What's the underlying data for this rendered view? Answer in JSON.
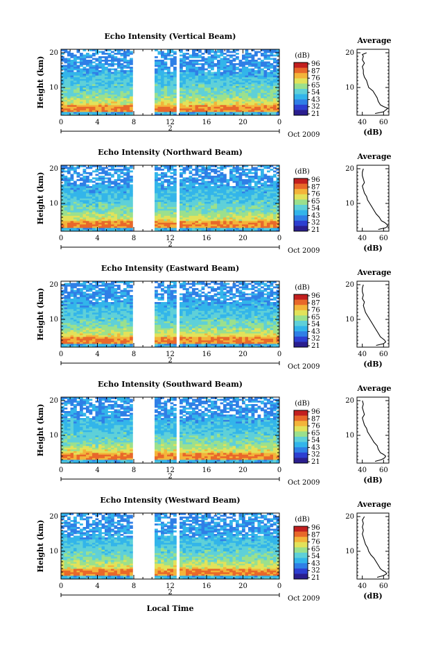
{
  "x_axis_common_label": "Local Time",
  "colorbar_unit": "(dB)",
  "colorbar_ticks": [
    "96",
    "87",
    "76",
    "65",
    "54",
    "43",
    "32",
    "21"
  ],
  "colormap": [
    "#2b1f8f",
    "#2d3fd1",
    "#2f7fe6",
    "#33b5ea",
    "#5fd0d8",
    "#9be08d",
    "#e2e25a",
    "#f3b43a",
    "#e8682a",
    "#c21f1f"
  ],
  "chart_data": [
    {
      "type": "heatmap",
      "title": "Echo Intensity (Vertical Beam)",
      "ylabel": "Height (km)",
      "x_ticks": [
        "0",
        "4",
        "8",
        "12",
        "16",
        "20",
        "0"
      ],
      "date_label": "2",
      "month_label": "Oct 2009",
      "ylim": [
        2,
        21
      ],
      "y_ticks": [
        "20",
        "10"
      ],
      "xlim": [
        0,
        24
      ],
      "data_gaps_hours": [
        [
          8,
          10.3
        ],
        [
          12.6,
          12.9
        ]
      ],
      "profile": {
        "title": "Average",
        "xlabel": "(dB)",
        "x_ticks": [
          "40",
          "60"
        ],
        "xlim": [
          35,
          65
        ],
        "y_ticks": [
          "20",
          "10"
        ],
        "values": [
          [
            2.5,
            52
          ],
          [
            3.0,
            60
          ],
          [
            3.5,
            62
          ],
          [
            4.0,
            64
          ],
          [
            4.5,
            60
          ],
          [
            5.0,
            57
          ],
          [
            6.0,
            55
          ],
          [
            7.0,
            54
          ],
          [
            8.0,
            52
          ],
          [
            9.0,
            50
          ],
          [
            10.0,
            46
          ],
          [
            11.0,
            45
          ],
          [
            12.0,
            44
          ],
          [
            13.0,
            42
          ],
          [
            14.0,
            41
          ],
          [
            15.0,
            41
          ],
          [
            16.0,
            40
          ],
          [
            17.0,
            42
          ],
          [
            18.0,
            40
          ],
          [
            19.0,
            41
          ],
          [
            19.5,
            40
          ],
          [
            20.0,
            44
          ]
        ]
      }
    },
    {
      "type": "heatmap",
      "title": "Echo Intensity (Northward Beam)",
      "ylabel": "Height (km)",
      "x_ticks": [
        "0",
        "4",
        "8",
        "12",
        "16",
        "20",
        "0"
      ],
      "date_label": "2",
      "month_label": "Oct 2009",
      "ylim": [
        2,
        21
      ],
      "y_ticks": [
        "20",
        "10"
      ],
      "xlim": [
        0,
        24
      ],
      "data_gaps_hours": [
        [
          8,
          10.3
        ],
        [
          12.6,
          12.9
        ]
      ],
      "profile": {
        "title": "Average",
        "xlabel": "(dB)",
        "x_ticks": [
          "40",
          "60"
        ],
        "xlim": [
          35,
          65
        ],
        "y_ticks": [
          "20",
          "10"
        ],
        "values": [
          [
            2.5,
            55
          ],
          [
            3.0,
            62
          ],
          [
            3.5,
            64
          ],
          [
            4.0,
            63
          ],
          [
            4.5,
            61
          ],
          [
            5.0,
            58
          ],
          [
            6.0,
            56
          ],
          [
            7.0,
            53
          ],
          [
            8.0,
            51
          ],
          [
            9.0,
            49
          ],
          [
            10.0,
            47
          ],
          [
            11.0,
            45
          ],
          [
            12.0,
            44
          ],
          [
            13.0,
            42
          ],
          [
            14.0,
            41
          ],
          [
            15.0,
            40
          ],
          [
            16.0,
            42
          ],
          [
            17.0,
            41
          ],
          [
            18.0,
            40
          ],
          [
            19.0,
            40
          ],
          [
            20.0,
            41
          ]
        ]
      }
    },
    {
      "type": "heatmap",
      "title": "Echo Intensity (Eastward Beam)",
      "ylabel": "Height (km)",
      "x_ticks": [
        "0",
        "4",
        "8",
        "12",
        "16",
        "20",
        "0"
      ],
      "date_label": "2",
      "month_label": "Oct 2009",
      "ylim": [
        2,
        21
      ],
      "y_ticks": [
        "20",
        "10"
      ],
      "xlim": [
        0,
        24
      ],
      "data_gaps_hours": [
        [
          8,
          10.3
        ],
        [
          12.6,
          12.9
        ]
      ],
      "profile": {
        "title": "Average",
        "xlabel": "(dB)",
        "x_ticks": [
          "40",
          "60"
        ],
        "xlim": [
          35,
          65
        ],
        "y_ticks": [
          "20",
          "10"
        ],
        "values": [
          [
            2.5,
            53
          ],
          [
            3.0,
            60
          ],
          [
            3.5,
            62
          ],
          [
            4.0,
            61
          ],
          [
            4.5,
            59
          ],
          [
            5.0,
            57
          ],
          [
            6.0,
            55
          ],
          [
            7.0,
            53
          ],
          [
            8.0,
            51
          ],
          [
            9.0,
            49
          ],
          [
            10.0,
            47
          ],
          [
            11.0,
            45
          ],
          [
            12.0,
            43
          ],
          [
            13.0,
            42
          ],
          [
            14.0,
            41
          ],
          [
            15.0,
            42
          ],
          [
            16.0,
            40
          ],
          [
            17.0,
            41
          ],
          [
            18.0,
            40
          ],
          [
            19.0,
            40
          ],
          [
            20.0,
            41
          ]
        ]
      }
    },
    {
      "type": "heatmap",
      "title": "Echo Intensity (Southward Beam)",
      "ylabel": "Height (km)",
      "x_ticks": [
        "0",
        "4",
        "8",
        "12",
        "16",
        "20",
        "0"
      ],
      "date_label": "2",
      "month_label": "Oct 2009",
      "ylim": [
        2,
        21
      ],
      "y_ticks": [
        "20",
        "10"
      ],
      "xlim": [
        0,
        24
      ],
      "data_gaps_hours": [
        [
          8,
          10.3
        ],
        [
          12.6,
          12.9
        ]
      ],
      "profile": {
        "title": "Average",
        "xlabel": "(dB)",
        "x_ticks": [
          "40",
          "60"
        ],
        "xlim": [
          35,
          65
        ],
        "y_ticks": [
          "20",
          "10"
        ],
        "values": [
          [
            2.5,
            52
          ],
          [
            3.0,
            58
          ],
          [
            3.5,
            61
          ],
          [
            4.0,
            62
          ],
          [
            4.5,
            60
          ],
          [
            5.0,
            57
          ],
          [
            6.0,
            55
          ],
          [
            7.0,
            54
          ],
          [
            8.0,
            51
          ],
          [
            9.0,
            49
          ],
          [
            10.0,
            47
          ],
          [
            11.0,
            45
          ],
          [
            12.0,
            44
          ],
          [
            13.0,
            42
          ],
          [
            14.0,
            41
          ],
          [
            15.0,
            40
          ],
          [
            16.0,
            42
          ],
          [
            17.0,
            41
          ],
          [
            18.0,
            40
          ],
          [
            19.0,
            41
          ],
          [
            20.0,
            40
          ]
        ]
      }
    },
    {
      "type": "heatmap",
      "title": "Echo Intensity (Westward Beam)",
      "ylabel": "Height (km)",
      "x_ticks": [
        "0",
        "4",
        "8",
        "12",
        "16",
        "20",
        "0"
      ],
      "date_label": "2",
      "month_label": "Oct 2009",
      "ylim": [
        2,
        21
      ],
      "y_ticks": [
        "20",
        "10"
      ],
      "xlim": [
        0,
        24
      ],
      "data_gaps_hours": [
        [
          8,
          10.3
        ],
        [
          12.6,
          12.9
        ]
      ],
      "profile": {
        "title": "Average",
        "xlabel": "(dB)",
        "x_ticks": [
          "40",
          "60"
        ],
        "xlim": [
          35,
          65
        ],
        "y_ticks": [
          "20",
          "10"
        ],
        "values": [
          [
            2.5,
            54
          ],
          [
            3.0,
            60
          ],
          [
            3.5,
            63
          ],
          [
            4.0,
            62
          ],
          [
            4.5,
            59
          ],
          [
            5.0,
            57
          ],
          [
            6.0,
            55
          ],
          [
            7.0,
            53
          ],
          [
            8.0,
            51
          ],
          [
            9.0,
            48
          ],
          [
            10.0,
            46
          ],
          [
            11.0,
            45
          ],
          [
            12.0,
            43
          ],
          [
            13.0,
            42
          ],
          [
            14.0,
            41
          ],
          [
            15.0,
            40
          ],
          [
            16.0,
            41
          ],
          [
            17.0,
            40
          ],
          [
            18.0,
            41
          ],
          [
            19.0,
            40
          ],
          [
            20.0,
            42
          ]
        ]
      }
    }
  ]
}
